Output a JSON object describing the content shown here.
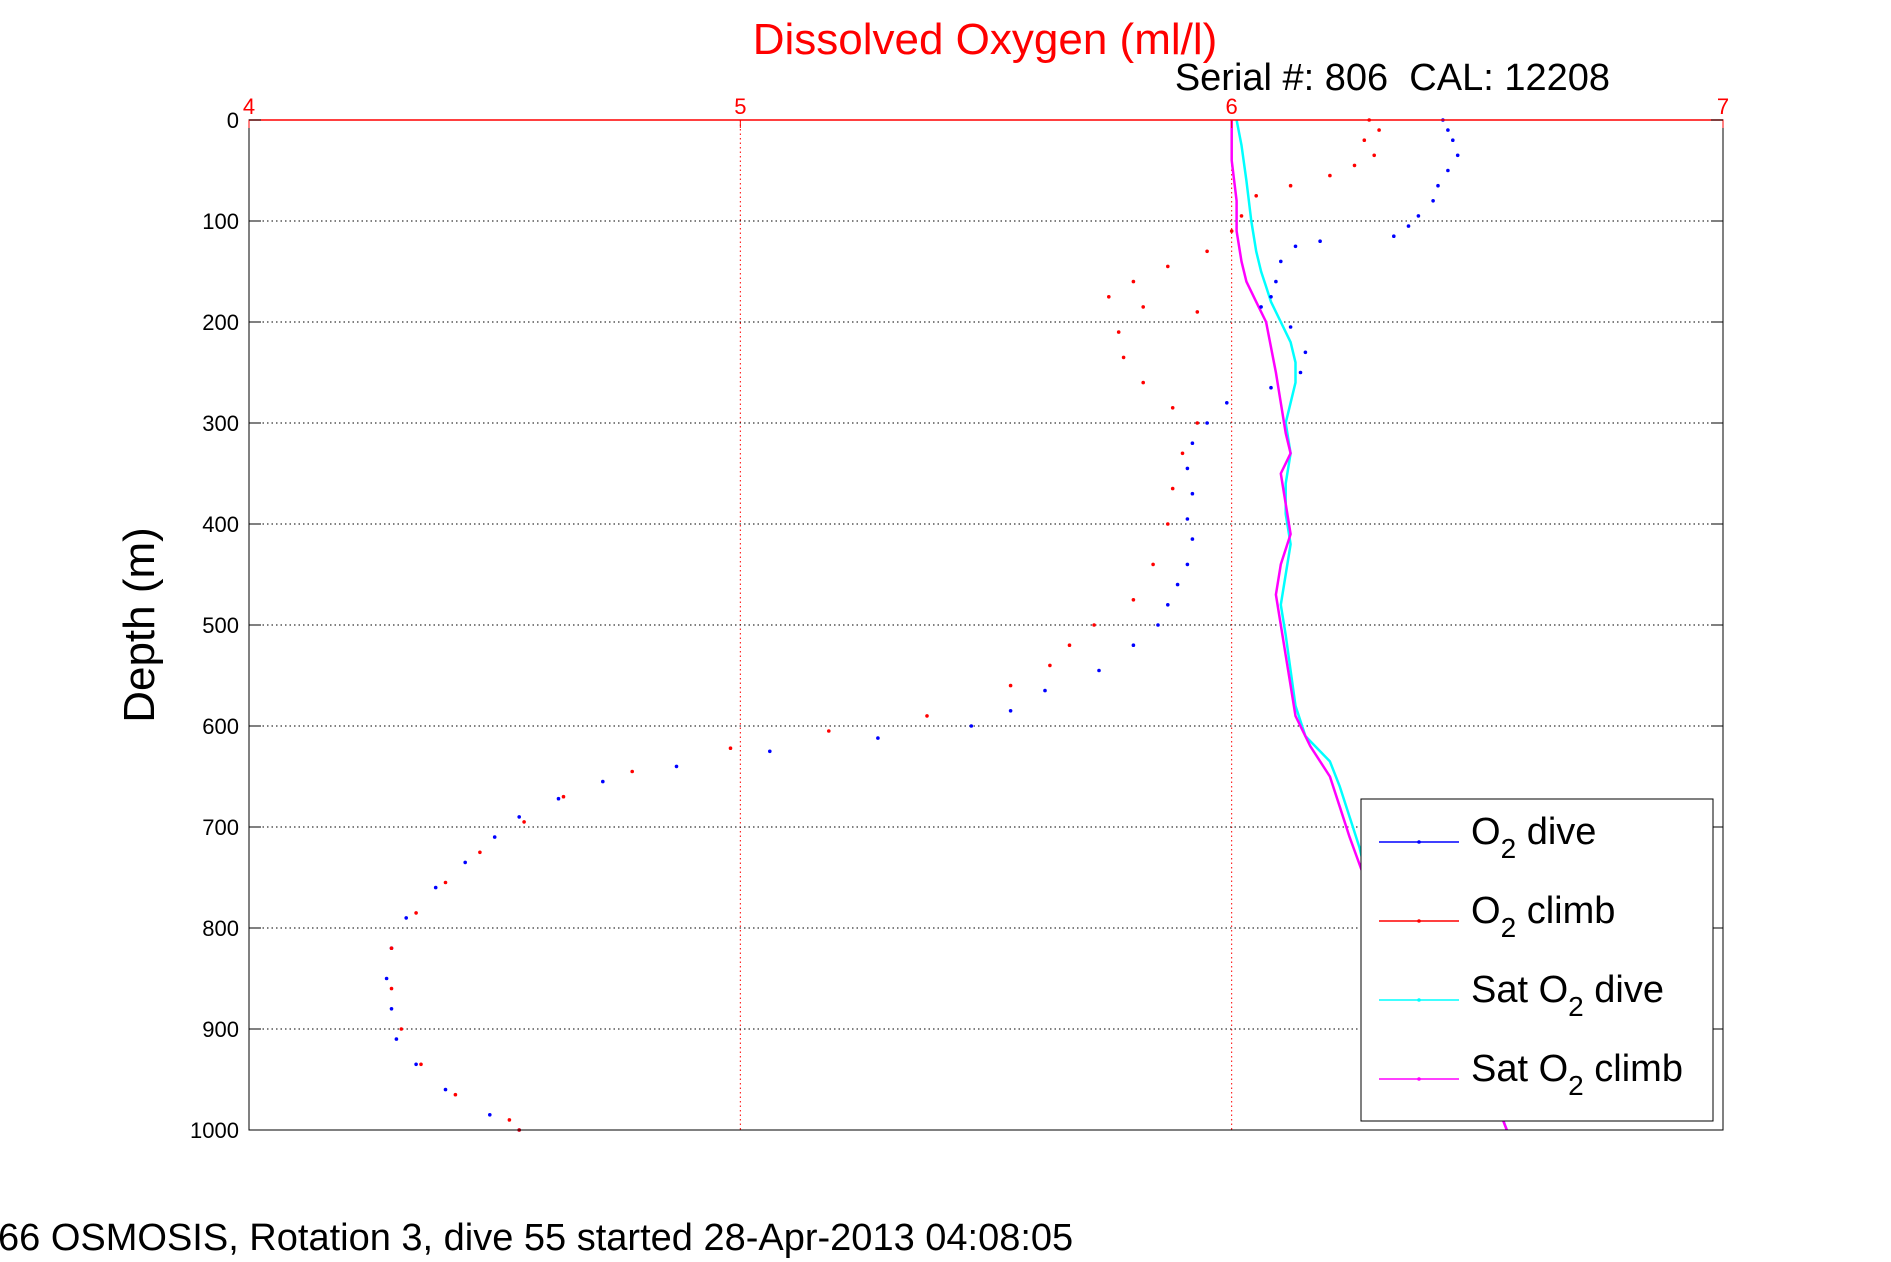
{
  "chart_data": {
    "type": "scatter",
    "title": "Dissolved Oxygen (ml/l)",
    "subtitle": "Serial #: 806  CAL: 12208",
    "ylabel": "Depth (m)",
    "xlabel": "",
    "caption": "66 OSMOSIS, Rotation 3, dive 55 started 28-Apr-2013 04:08:05",
    "xlim": [
      4,
      7
    ],
    "ylim": [
      0,
      1000
    ],
    "y_reversed": true,
    "x_axis_position": "top",
    "x_ticks": [
      "4",
      "5",
      "6",
      "7"
    ],
    "y_ticks": [
      "0",
      "100",
      "200",
      "300",
      "400",
      "500",
      "600",
      "700",
      "800",
      "900",
      "1000"
    ],
    "grid": true,
    "legend_position": "bottom-right",
    "colors": {
      "title": "#ff0000",
      "x_axis": "#ff0000",
      "o2_dive": "#0000ff",
      "o2_climb": "#ff0000",
      "sat_dive": "#00ffff",
      "sat_climb": "#ff00ff"
    },
    "series": [
      {
        "name": "O2 dive",
        "legend_main": "O",
        "legend_sub": "2",
        "legend_rest": " dive",
        "style": "points",
        "points": [
          [
            6.43,
            0
          ],
          [
            6.44,
            10
          ],
          [
            6.45,
            20
          ],
          [
            6.46,
            35
          ],
          [
            6.44,
            50
          ],
          [
            6.42,
            65
          ],
          [
            6.41,
            80
          ],
          [
            6.38,
            95
          ],
          [
            6.36,
            105
          ],
          [
            6.33,
            115
          ],
          [
            6.18,
            120
          ],
          [
            6.13,
            125
          ],
          [
            6.1,
            140
          ],
          [
            6.09,
            160
          ],
          [
            6.08,
            175
          ],
          [
            6.06,
            185
          ],
          [
            6.12,
            205
          ],
          [
            6.15,
            230
          ],
          [
            6.14,
            250
          ],
          [
            6.08,
            265
          ],
          [
            5.99,
            280
          ],
          [
            5.95,
            300
          ],
          [
            5.92,
            320
          ],
          [
            5.91,
            345
          ],
          [
            5.92,
            370
          ],
          [
            5.91,
            395
          ],
          [
            5.92,
            415
          ],
          [
            5.91,
            440
          ],
          [
            5.89,
            460
          ],
          [
            5.87,
            480
          ],
          [
            5.85,
            500
          ],
          [
            5.8,
            520
          ],
          [
            5.73,
            545
          ],
          [
            5.62,
            565
          ],
          [
            5.55,
            585
          ],
          [
            5.47,
            600
          ],
          [
            5.28,
            612
          ],
          [
            5.06,
            625
          ],
          [
            4.87,
            640
          ],
          [
            4.72,
            655
          ],
          [
            4.63,
            672
          ],
          [
            4.55,
            690
          ],
          [
            4.5,
            710
          ],
          [
            4.44,
            735
          ],
          [
            4.38,
            760
          ],
          [
            4.32,
            790
          ],
          [
            4.29,
            820
          ],
          [
            4.28,
            850
          ],
          [
            4.29,
            880
          ],
          [
            4.3,
            910
          ],
          [
            4.34,
            935
          ],
          [
            4.4,
            960
          ],
          [
            4.49,
            985
          ],
          [
            4.55,
            1000
          ]
        ]
      },
      {
        "name": "O2 climb",
        "legend_main": "O",
        "legend_sub": "2",
        "legend_rest": " climb",
        "style": "points",
        "points": [
          [
            6.28,
            0
          ],
          [
            6.3,
            10
          ],
          [
            6.27,
            20
          ],
          [
            6.29,
            35
          ],
          [
            6.25,
            45
          ],
          [
            6.2,
            55
          ],
          [
            6.12,
            65
          ],
          [
            6.05,
            75
          ],
          [
            6.02,
            95
          ],
          [
            6.0,
            110
          ],
          [
            5.95,
            130
          ],
          [
            5.87,
            145
          ],
          [
            5.8,
            160
          ],
          [
            5.75,
            175
          ],
          [
            5.82,
            185
          ],
          [
            5.93,
            190
          ],
          [
            5.77,
            210
          ],
          [
            5.78,
            235
          ],
          [
            5.82,
            260
          ],
          [
            5.88,
            285
          ],
          [
            5.93,
            300
          ],
          [
            5.9,
            330
          ],
          [
            5.88,
            365
          ],
          [
            5.87,
            400
          ],
          [
            5.84,
            440
          ],
          [
            5.8,
            475
          ],
          [
            5.72,
            500
          ],
          [
            5.67,
            520
          ],
          [
            5.63,
            540
          ],
          [
            5.55,
            560
          ],
          [
            5.38,
            590
          ],
          [
            5.18,
            605
          ],
          [
            4.98,
            622
          ],
          [
            4.78,
            645
          ],
          [
            4.64,
            670
          ],
          [
            4.56,
            695
          ],
          [
            4.47,
            725
          ],
          [
            4.4,
            755
          ],
          [
            4.34,
            785
          ],
          [
            4.29,
            820
          ],
          [
            4.29,
            860
          ],
          [
            4.31,
            900
          ],
          [
            4.35,
            935
          ],
          [
            4.42,
            965
          ],
          [
            4.53,
            990
          ],
          [
            4.55,
            1000
          ]
        ]
      },
      {
        "name": "Sat O2 dive",
        "legend_main": "Sat O",
        "legend_sub": "2",
        "legend_rest": " dive",
        "style": "line",
        "points": [
          [
            6.01,
            0
          ],
          [
            6.02,
            25
          ],
          [
            6.03,
            60
          ],
          [
            6.04,
            100
          ],
          [
            6.05,
            130
          ],
          [
            6.06,
            150
          ],
          [
            6.07,
            165
          ],
          [
            6.08,
            180
          ],
          [
            6.1,
            200
          ],
          [
            6.12,
            220
          ],
          [
            6.13,
            240
          ],
          [
            6.13,
            260
          ],
          [
            6.12,
            280
          ],
          [
            6.11,
            300
          ],
          [
            6.12,
            330
          ],
          [
            6.11,
            360
          ],
          [
            6.11,
            390
          ],
          [
            6.12,
            420
          ],
          [
            6.11,
            450
          ],
          [
            6.1,
            480
          ],
          [
            6.11,
            510
          ],
          [
            6.12,
            545
          ],
          [
            6.13,
            580
          ],
          [
            6.15,
            610
          ],
          [
            6.2,
            635
          ],
          [
            6.22,
            660
          ],
          [
            6.24,
            690
          ],
          [
            6.26,
            720
          ],
          [
            6.28,
            760
          ],
          [
            6.33,
            800
          ],
          [
            6.38,
            840
          ],
          [
            6.43,
            880
          ],
          [
            6.48,
            920
          ],
          [
            6.53,
            960
          ],
          [
            6.56,
            1000
          ]
        ]
      },
      {
        "name": "Sat O2 climb",
        "legend_main": "Sat O",
        "legend_sub": "2",
        "legend_rest": " climb",
        "style": "line",
        "points": [
          [
            6.0,
            0
          ],
          [
            6.0,
            40
          ],
          [
            6.01,
            80
          ],
          [
            6.01,
            110
          ],
          [
            6.02,
            140
          ],
          [
            6.03,
            160
          ],
          [
            6.05,
            180
          ],
          [
            6.07,
            200
          ],
          [
            6.08,
            225
          ],
          [
            6.09,
            250
          ],
          [
            6.1,
            280
          ],
          [
            6.11,
            310
          ],
          [
            6.12,
            330
          ],
          [
            6.1,
            350
          ],
          [
            6.11,
            380
          ],
          [
            6.12,
            410
          ],
          [
            6.1,
            440
          ],
          [
            6.09,
            470
          ],
          [
            6.1,
            500
          ],
          [
            6.11,
            530
          ],
          [
            6.12,
            560
          ],
          [
            6.13,
            590
          ],
          [
            6.16,
            620
          ],
          [
            6.2,
            650
          ],
          [
            6.22,
            680
          ],
          [
            6.24,
            710
          ],
          [
            6.27,
            750
          ],
          [
            6.32,
            790
          ],
          [
            6.38,
            830
          ],
          [
            6.43,
            870
          ],
          [
            6.47,
            910
          ],
          [
            6.52,
            950
          ],
          [
            6.56,
            1000
          ]
        ]
      }
    ]
  }
}
